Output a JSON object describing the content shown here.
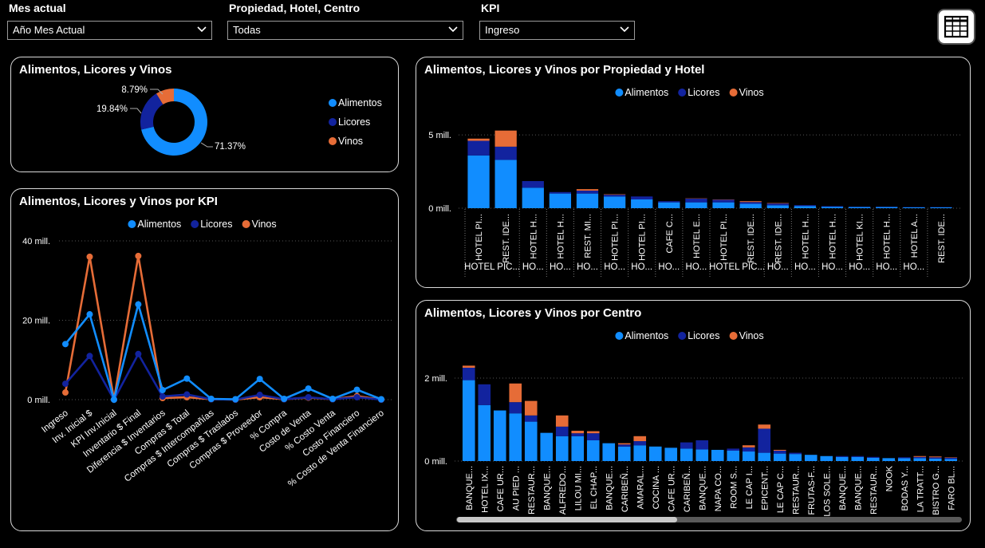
{
  "filters": {
    "mes": {
      "label": "Mes actual",
      "value": "Año Mes Actual"
    },
    "propiedad": {
      "label": "Propiedad, Hotel, Centro",
      "value": "Todas"
    },
    "kpi": {
      "label": "KPI",
      "value": "Ingreso"
    }
  },
  "table_button_icon": "table-grid-icon",
  "colors": {
    "alimentos": "#118dff",
    "licores": "#12239e",
    "vinos": "#e66c37"
  },
  "legend": [
    "Alimentos",
    "Licores",
    "Vinos"
  ],
  "donut": {
    "title": "Alimentos, Licores y Vinos",
    "chart_data": {
      "type": "pie",
      "labels": [
        "Alimentos",
        "Licores",
        "Vinos"
      ],
      "values": [
        71.37,
        19.84,
        8.79
      ],
      "data_labels": [
        "71.37%",
        "19.84%",
        "8.79%"
      ]
    }
  },
  "kpi_chart": {
    "title": "Alimentos, Licores y Vinos por KPI",
    "y_ticks": [
      "40 mill.",
      "20 mill.",
      "0 mill."
    ],
    "chart_data": {
      "type": "line",
      "categories": [
        "Ingreso",
        "Inv. Inicial $",
        "KPI Inv.Inicial",
        "Inventario $ Final",
        "Diferencia $ Inventarios",
        "Compras $ Total",
        "Compras $ Intercompañías",
        "Compras $ Traslados",
        "Compras $ Proveedor",
        "% Compra",
        "Costo de Venta",
        "% Costo Venta",
        "Costo Financiero",
        "% Costo de Venta Financiero"
      ],
      "ylim": [
        0,
        40
      ],
      "series": [
        {
          "name": "Alimentos",
          "values": [
            14,
            21.5,
            0,
            24,
            2.4,
            5.3,
            0.2,
            0.1,
            5.2,
            0.2,
            2.8,
            0.2,
            2.5,
            0.1
          ]
        },
        {
          "name": "Licores",
          "values": [
            4,
            11,
            0,
            11.5,
            0.8,
            1.3,
            0.1,
            0,
            1.2,
            0.1,
            0.6,
            0.1,
            0.6,
            0
          ]
        },
        {
          "name": "Vinos",
          "values": [
            1.8,
            36,
            0,
            36.2,
            0.4,
            0.6,
            0.1,
            0,
            0.6,
            0.1,
            0.5,
            0.1,
            0.9,
            0
          ]
        }
      ]
    }
  },
  "prop_chart": {
    "title": "Alimentos, Licores y Vinos por Propiedad y Hotel",
    "y_ticks": [
      "5 mill.",
      "0 mill."
    ],
    "chart_data": {
      "type": "bar",
      "stacked": true,
      "ylim": [
        0,
        5.5
      ],
      "categories": [
        "HOTEL PI...",
        "REST. IDE...",
        "HOTEL H...",
        "HOTEL H...",
        "REST. MI...",
        "HOTEL PI...",
        "HOTEL PI...",
        "CAFE C...",
        "HOTEL E...",
        "HOTEL PI...",
        "REST. IDE...",
        "REST. IDE...",
        "HOTEL H...",
        "HOTEL H...",
        "HOTEL KI...",
        "HOTEL H...",
        "HOTEL A...",
        "REST. IDE..."
      ],
      "groups": [
        {
          "label": "HOTEL PIC...",
          "count": 2
        },
        {
          "label": "HO...",
          "count": 1
        },
        {
          "label": "HO...",
          "count": 1
        },
        {
          "label": "HO...",
          "count": 1
        },
        {
          "label": "HO...",
          "count": 1
        },
        {
          "label": "HO...",
          "count": 1
        },
        {
          "label": "HO...",
          "count": 1
        },
        {
          "label": "HO...",
          "count": 1
        },
        {
          "label": "HOTEL PIC...",
          "count": 2
        },
        {
          "label": "HO...",
          "count": 1
        },
        {
          "label": "HO...",
          "count": 1
        },
        {
          "label": "HO...",
          "count": 1
        },
        {
          "label": "HO...",
          "count": 1
        },
        {
          "label": "HO...",
          "count": 1
        },
        {
          "label": "HO...",
          "count": 1
        }
      ],
      "series": [
        {
          "name": "Alimentos",
          "values": [
            3.6,
            3.3,
            1.4,
            1.0,
            1.0,
            0.8,
            0.6,
            0.4,
            0.4,
            0.4,
            0.3,
            0.2,
            0.15,
            0.1,
            0.08,
            0.08,
            0.06,
            0.06
          ]
        },
        {
          "name": "Licores",
          "values": [
            1.0,
            0.9,
            0.45,
            0.1,
            0.2,
            0.12,
            0.2,
            0.08,
            0.25,
            0.18,
            0.12,
            0.12,
            0.06,
            0.04,
            0.02,
            0.02,
            0.02,
            0.02
          ]
        },
        {
          "name": "Vinos",
          "values": [
            0.15,
            1.1,
            0,
            0,
            0.1,
            0.03,
            0,
            0,
            0.02,
            0.02,
            0.06,
            0.03,
            0,
            0,
            0,
            0,
            0,
            0
          ]
        }
      ]
    }
  },
  "centro_chart": {
    "title": "Alimentos, Licores y Vinos por Centro",
    "y_ticks": [
      "2 mill.",
      "0 mill."
    ],
    "chart_data": {
      "type": "bar",
      "stacked": true,
      "ylim": [
        0,
        2.5
      ],
      "categories": [
        "BANQUE...",
        "HOTEL IX...",
        "CAFE UR...",
        "AU PIED ...",
        "RESTAUR...",
        "BANQUE...",
        "ALFREDO...",
        "LILOU MI...",
        "EL CHAP...",
        "BANQUE...",
        "CARIBEÑ...",
        "AMARAL...",
        "COCINA ...",
        "CAFE UR...",
        "CARIBEÑ...",
        "BANQUE...",
        "NAPA CO...",
        "ROOM S...",
        "LE CAP I...",
        "EPICENT...",
        "LE CAP C...",
        "RESTAUR...",
        "FRUTAS-F...",
        "LOS SOLE...",
        "BANQUE...",
        "BANQUE...",
        "RESTAUR...",
        "NOOK",
        "BODAS Y...",
        "LA TRATT...",
        "BISTRO G...",
        "FARO BL..."
      ],
      "series": [
        {
          "name": "Alimentos",
          "values": [
            1.95,
            1.35,
            1.22,
            1.15,
            0.95,
            0.68,
            0.6,
            0.6,
            0.5,
            0.43,
            0.35,
            0.38,
            0.35,
            0.32,
            0.3,
            0.28,
            0.27,
            0.25,
            0.23,
            0.2,
            0.18,
            0.17,
            0.15,
            0.12,
            0.1,
            0.1,
            0.08,
            0.07,
            0.07,
            0.07,
            0.06,
            0.05
          ]
        },
        {
          "name": "Licores",
          "values": [
            0.3,
            0.5,
            0,
            0.27,
            0.15,
            0,
            0.23,
            0.07,
            0.17,
            0,
            0.05,
            0.1,
            0,
            0,
            0.15,
            0.22,
            0,
            0.05,
            0.1,
            0.58,
            0.07,
            0.03,
            0,
            0,
            0.02,
            0.02,
            0.02,
            0,
            0.02,
            0.03,
            0.03,
            0.03
          ]
        },
        {
          "name": "Vinos",
          "values": [
            0.05,
            0,
            0,
            0.45,
            0.35,
            0,
            0.27,
            0.06,
            0.05,
            0,
            0.03,
            0.12,
            0,
            0,
            0,
            0,
            0,
            0,
            0.05,
            0.1,
            0.02,
            0,
            0,
            0,
            0,
            0,
            0,
            0,
            0,
            0.02,
            0.02,
            0.01
          ]
        }
      ]
    }
  }
}
